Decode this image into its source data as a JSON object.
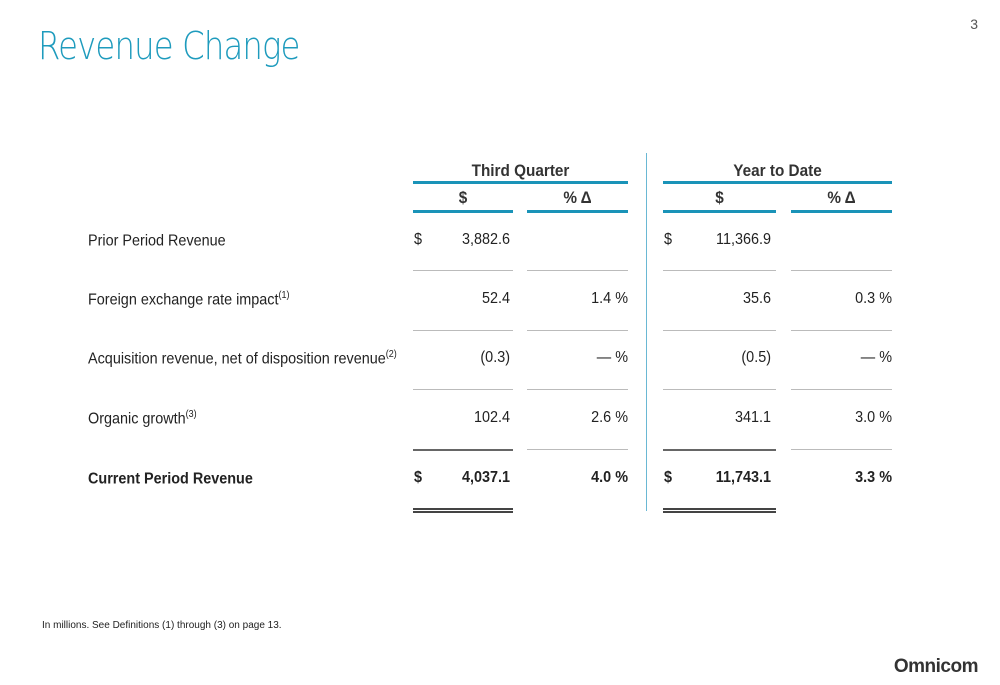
{
  "title": "Revenue Change",
  "page_number": "3",
  "groups": [
    "Third Quarter",
    "Year to Date"
  ],
  "col_headers": {
    "dollar": "$",
    "pct": "% Δ"
  },
  "rows": [
    {
      "label": "Prior Period Revenue",
      "sup": "",
      "tq_cur": "$",
      "tq": "3,882.6",
      "tq_pct": "",
      "ytd_cur": "$",
      "ytd": "11,366.9",
      "ytd_pct": ""
    },
    {
      "label": "Foreign exchange rate impact",
      "sup": "(1)",
      "tq_cur": "",
      "tq": "52.4",
      "tq_pct": "1.4 %",
      "ytd_cur": "",
      "ytd": "35.6",
      "ytd_pct": "0.3 %"
    },
    {
      "label": "Acquisition revenue, net of disposition revenue",
      "sup": "(2)",
      "tq_cur": "",
      "tq": "(0.3)",
      "tq_pct": "— %",
      "ytd_cur": "",
      "ytd": "(0.5)",
      "ytd_pct": "— %"
    },
    {
      "label": "Organic growth",
      "sup": "(3)",
      "tq_cur": "",
      "tq": "102.4",
      "tq_pct": "2.6 %",
      "ytd_cur": "",
      "ytd": "341.1",
      "ytd_pct": "3.0 %"
    },
    {
      "label": "Current Period Revenue",
      "sup": "",
      "tq_cur": "$",
      "tq": "4,037.1",
      "tq_pct": "4.0 %",
      "ytd_cur": "$",
      "ytd": "11,743.1",
      "ytd_pct": "3.3 %"
    }
  ],
  "footnote": "In millions.  See Definitions (1) through (3) on page 13.",
  "logo": "Omnicom"
}
